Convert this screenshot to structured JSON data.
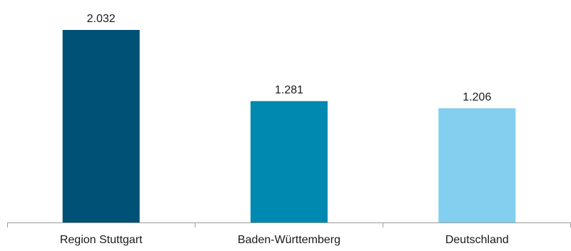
{
  "chart_data": {
    "type": "bar",
    "categories": [
      "Region Stuttgart",
      "Baden-Württemberg",
      "Deutschland"
    ],
    "values": [
      2.032,
      1.281,
      1.206
    ],
    "value_labels": [
      "2.032",
      "1.281",
      "1.206"
    ],
    "colors": [
      "#005176",
      "#0089b0",
      "#82cff0"
    ],
    "axis_color": "#9a9a9a",
    "ylim": [
      0,
      2.032
    ],
    "grid": false,
    "legend": "none"
  }
}
